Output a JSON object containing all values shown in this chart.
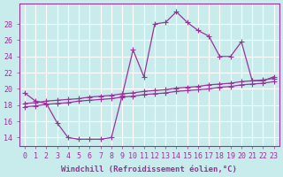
{
  "background_color": "#c8ecec",
  "line_color": "#993399",
  "grid_color": "#ffffff",
  "xlabel": "Windchill (Refroidissement éolien,°C)",
  "xlim_min": -0.5,
  "xlim_max": 23.5,
  "ylim_min": 13.0,
  "ylim_max": 30.5,
  "yticks": [
    14,
    16,
    18,
    20,
    22,
    24,
    26,
    28
  ],
  "xticks": [
    0,
    1,
    2,
    3,
    4,
    5,
    6,
    7,
    8,
    9,
    10,
    11,
    12,
    13,
    14,
    15,
    16,
    17,
    18,
    19,
    20,
    21,
    22,
    23
  ],
  "curve_x": [
    0,
    1,
    2,
    3,
    4,
    5,
    6,
    7,
    8,
    9,
    10,
    11,
    12,
    13,
    14,
    15,
    16,
    17,
    18,
    19,
    20,
    21,
    22,
    23
  ],
  "curve_y": [
    19.5,
    18.5,
    18.2,
    15.8,
    14.0,
    13.8,
    13.8,
    13.8,
    14.0,
    19.2,
    24.8,
    21.5,
    28.0,
    28.2,
    29.5,
    28.2,
    27.2,
    26.5,
    24.0,
    24.0,
    25.8,
    21.0,
    21.0,
    21.5
  ],
  "diag1_x": [
    0,
    1,
    2,
    3,
    4,
    5,
    6,
    7,
    8,
    9,
    10,
    11,
    12,
    13,
    14,
    15,
    16,
    17,
    18,
    19,
    20,
    21,
    22,
    23
  ],
  "diag1_y": [
    18.2,
    18.3,
    18.5,
    18.6,
    18.7,
    18.8,
    19.0,
    19.1,
    19.2,
    19.4,
    19.5,
    19.7,
    19.8,
    19.9,
    20.1,
    20.2,
    20.3,
    20.5,
    20.6,
    20.7,
    20.9,
    21.0,
    21.1,
    21.3
  ],
  "diag2_x": [
    0,
    1,
    2,
    3,
    4,
    5,
    6,
    7,
    8,
    9,
    10,
    11,
    12,
    13,
    14,
    15,
    16,
    17,
    18,
    19,
    20,
    21,
    22,
    23
  ],
  "diag2_y": [
    17.8,
    17.9,
    18.1,
    18.2,
    18.3,
    18.5,
    18.6,
    18.7,
    18.8,
    19.0,
    19.1,
    19.3,
    19.4,
    19.5,
    19.7,
    19.8,
    19.9,
    20.0,
    20.2,
    20.3,
    20.5,
    20.6,
    20.7,
    20.9
  ],
  "marker": "+",
  "markersize": 4,
  "linewidth": 0.9,
  "fontsize_ticks": 6,
  "fontsize_label": 6.5
}
